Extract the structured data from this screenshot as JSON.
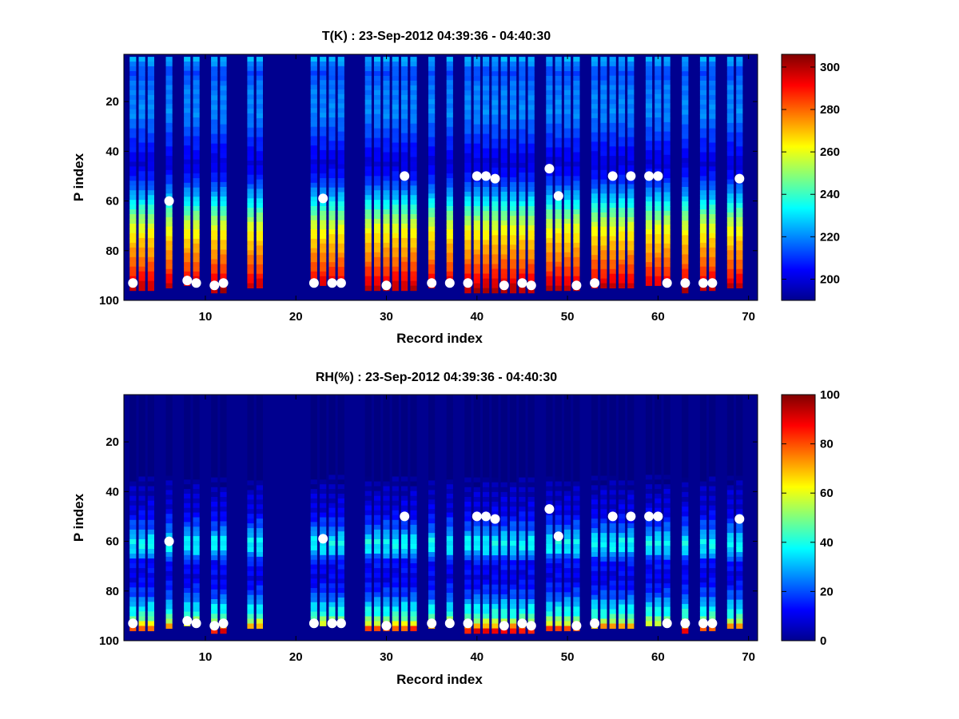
{
  "chart_data": [
    {
      "type": "heatmap",
      "title": "T(K) : 23-Sep-2012 04:39:36 - 04:40:30",
      "xlabel": "Record index",
      "ylabel": "P index",
      "xlim": [
        1,
        71
      ],
      "ylim": [
        100,
        1
      ],
      "y_reversed": true,
      "x_ticks": [
        10,
        20,
        30,
        40,
        50,
        60,
        70
      ],
      "y_ticks": [
        20,
        40,
        60,
        80,
        100
      ],
      "colormap": "jet",
      "background_color": "#00008f",
      "colorbar": {
        "min": 190,
        "max": 306,
        "ticks": [
          200,
          220,
          240,
          260,
          280,
          300
        ]
      },
      "field_summary": "temperature profile: about 215 K near P index 5, minimum about 200 K near P index 45, rising to about 295 K at the bottom",
      "columns_with_data": [
        2,
        3,
        4,
        6,
        8,
        9,
        11,
        12,
        15,
        16,
        22,
        23,
        24,
        25,
        28,
        29,
        30,
        31,
        32,
        33,
        35,
        37,
        39,
        40,
        41,
        42,
        43,
        44,
        45,
        46,
        48,
        49,
        50,
        51,
        53,
        54,
        55,
        56,
        57,
        59,
        60,
        61,
        63,
        65,
        66,
        68,
        69
      ],
      "markers": [
        {
          "x": 2,
          "y": 93
        },
        {
          "x": 6,
          "y": 60
        },
        {
          "x": 8,
          "y": 92
        },
        {
          "x": 9,
          "y": 93
        },
        {
          "x": 11,
          "y": 94
        },
        {
          "x": 12,
          "y": 93
        },
        {
          "x": 22,
          "y": 93
        },
        {
          "x": 23,
          "y": 59
        },
        {
          "x": 24,
          "y": 93
        },
        {
          "x": 25,
          "y": 93
        },
        {
          "x": 30,
          "y": 94
        },
        {
          "x": 32,
          "y": 50
        },
        {
          "x": 35,
          "y": 93
        },
        {
          "x": 37,
          "y": 93
        },
        {
          "x": 39,
          "y": 93
        },
        {
          "x": 40,
          "y": 50
        },
        {
          "x": 41,
          "y": 50
        },
        {
          "x": 42,
          "y": 51
        },
        {
          "x": 43,
          "y": 94
        },
        {
          "x": 45,
          "y": 93
        },
        {
          "x": 46,
          "y": 94
        },
        {
          "x": 48,
          "y": 47
        },
        {
          "x": 49,
          "y": 58
        },
        {
          "x": 51,
          "y": 94
        },
        {
          "x": 53,
          "y": 93
        },
        {
          "x": 55,
          "y": 50
        },
        {
          "x": 57,
          "y": 50
        },
        {
          "x": 59,
          "y": 50
        },
        {
          "x": 60,
          "y": 50
        },
        {
          "x": 61,
          "y": 93
        },
        {
          "x": 63,
          "y": 93
        },
        {
          "x": 65,
          "y": 93
        },
        {
          "x": 66,
          "y": 93
        },
        {
          "x": 69,
          "y": 51
        }
      ]
    },
    {
      "type": "heatmap",
      "title": "RH(%) : 23-Sep-2012 04:39:36 - 04:40:30",
      "xlabel": "Record index",
      "ylabel": "P index",
      "xlim": [
        1,
        71
      ],
      "ylim": [
        100,
        1
      ],
      "y_reversed": true,
      "x_ticks": [
        10,
        20,
        30,
        40,
        50,
        60,
        70
      ],
      "y_ticks": [
        20,
        40,
        60,
        80,
        100
      ],
      "colormap": "jet",
      "background_color": "#00008f",
      "colorbar": {
        "min": 0,
        "max": 100,
        "ticks": [
          0,
          20,
          40,
          60,
          80,
          100
        ]
      },
      "field_summary": "relative humidity near 0% above P index 35, a moist layer of about 30-40% near P index 60, and 40-100% near the bottom (P index 85-97)",
      "columns_with_data": [
        2,
        3,
        4,
        6,
        8,
        9,
        11,
        12,
        15,
        16,
        22,
        23,
        24,
        25,
        28,
        29,
        30,
        31,
        32,
        33,
        35,
        37,
        39,
        40,
        41,
        42,
        43,
        44,
        45,
        46,
        48,
        49,
        50,
        51,
        53,
        54,
        55,
        56,
        57,
        59,
        60,
        61,
        63,
        65,
        66,
        68,
        69
      ],
      "markers": [
        {
          "x": 2,
          "y": 93
        },
        {
          "x": 6,
          "y": 60
        },
        {
          "x": 8,
          "y": 92
        },
        {
          "x": 9,
          "y": 93
        },
        {
          "x": 11,
          "y": 94
        },
        {
          "x": 12,
          "y": 93
        },
        {
          "x": 22,
          "y": 93
        },
        {
          "x": 23,
          "y": 59
        },
        {
          "x": 24,
          "y": 93
        },
        {
          "x": 25,
          "y": 93
        },
        {
          "x": 30,
          "y": 94
        },
        {
          "x": 32,
          "y": 50
        },
        {
          "x": 35,
          "y": 93
        },
        {
          "x": 37,
          "y": 93
        },
        {
          "x": 39,
          "y": 93
        },
        {
          "x": 40,
          "y": 50
        },
        {
          "x": 41,
          "y": 50
        },
        {
          "x": 42,
          "y": 51
        },
        {
          "x": 43,
          "y": 94
        },
        {
          "x": 45,
          "y": 93
        },
        {
          "x": 46,
          "y": 94
        },
        {
          "x": 48,
          "y": 47
        },
        {
          "x": 49,
          "y": 58
        },
        {
          "x": 51,
          "y": 94
        },
        {
          "x": 53,
          "y": 93
        },
        {
          "x": 55,
          "y": 50
        },
        {
          "x": 57,
          "y": 50
        },
        {
          "x": 59,
          "y": 50
        },
        {
          "x": 60,
          "y": 50
        },
        {
          "x": 61,
          "y": 93
        },
        {
          "x": 63,
          "y": 93
        },
        {
          "x": 65,
          "y": 93
        },
        {
          "x": 66,
          "y": 93
        },
        {
          "x": 69,
          "y": 51
        }
      ]
    }
  ]
}
